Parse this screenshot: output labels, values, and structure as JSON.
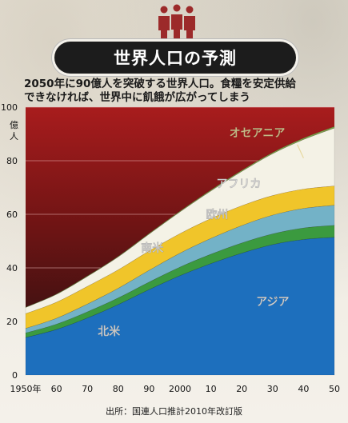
{
  "header": {
    "title": "世界人口の予測",
    "subtitle_line1": "2050年に90億人を突破する世界人口。食糧を安定供給",
    "subtitle_line2": "できなければ、世界中に飢餓が広がってしまう"
  },
  "source": "出所：国連人口推計2010年改訂版",
  "colors": {
    "background_top": "#a11b1d",
    "background_bottom": "#2a0c0c",
    "asia": "#1d6fbd",
    "north_america": "#3b9a3f",
    "south_america": "#73b2c7",
    "europe": "#f0c52a",
    "africa": "#f4f2e6",
    "oceania": "#7ba54e"
  },
  "chart_data": {
    "type": "area",
    "stacked": true,
    "title": "",
    "ylabel": "億人",
    "ylim": [
      0,
      100
    ],
    "yticks": [
      0,
      20,
      40,
      60,
      80,
      100
    ],
    "y_unit_label": "億\n人",
    "xlim": [
      1950,
      2050
    ],
    "x": [
      1950,
      1960,
      1970,
      1980,
      1990,
      2000,
      2010,
      2020,
      2030,
      2040,
      2050
    ],
    "xtick_labels": [
      "1950年",
      "60",
      "70",
      "80",
      "90",
      "2000",
      "10",
      "20",
      "30",
      "40",
      "50"
    ],
    "grid": true,
    "series": [
      {
        "name": "アジア",
        "values": [
          14.0,
          17.0,
          21.3,
          26.3,
          31.9,
          37.1,
          41.6,
          45.5,
          48.7,
          50.6,
          51.4
        ]
      },
      {
        "name": "北米",
        "values": [
          1.7,
          2.0,
          2.3,
          2.5,
          2.8,
          3.2,
          3.5,
          3.8,
          4.0,
          4.3,
          4.5
        ]
      },
      {
        "name": "南米",
        "values": [
          1.7,
          2.2,
          2.9,
          3.6,
          4.4,
          5.2,
          5.9,
          6.5,
          7.0,
          7.3,
          7.5
        ]
      },
      {
        "name": "欧州",
        "values": [
          5.5,
          6.0,
          6.6,
          6.9,
          7.2,
          7.3,
          7.4,
          7.4,
          7.3,
          7.2,
          7.2
        ]
      },
      {
        "name": "アフリカ",
        "values": [
          2.3,
          2.9,
          3.7,
          4.8,
          6.3,
          8.1,
          10.3,
          12.8,
          15.6,
          18.5,
          21.6
        ]
      },
      {
        "name": "オセアニア",
        "values": [
          0.13,
          0.16,
          0.2,
          0.23,
          0.27,
          0.31,
          0.37,
          0.42,
          0.47,
          0.52,
          0.55
        ]
      }
    ],
    "labels": [
      "アジア",
      "北米",
      "南米",
      "欧州",
      "アフリカ",
      "オセアニア"
    ]
  }
}
